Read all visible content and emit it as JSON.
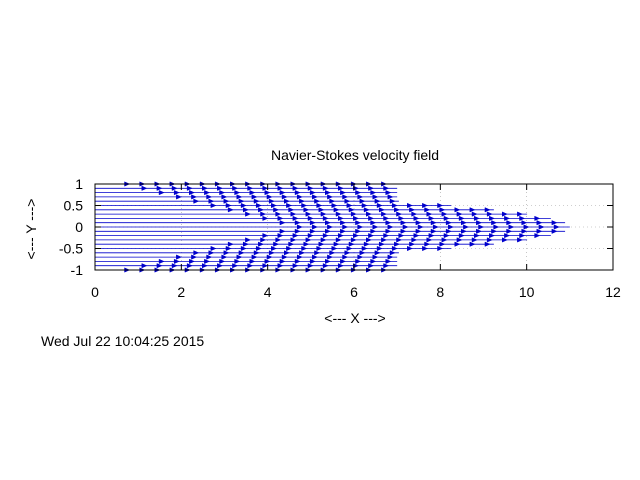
{
  "chart_data": {
    "type": "vector-field",
    "title": "Navier-Stokes velocity field",
    "xlabel": "<--- X --->",
    "ylabel": "<--- Y --->",
    "xlim": [
      0,
      12
    ],
    "ylim": [
      -1,
      1
    ],
    "xticks": [
      "0",
      "2",
      "4",
      "6",
      "8",
      "10",
      "12"
    ],
    "yticks": [
      "1",
      "0.5",
      "0",
      "-0.5",
      "-1"
    ],
    "grid": true,
    "legend": "none",
    "color": "#0000cc",
    "field": {
      "description": "parabolic flow profile u = 11*(1 - y^2), arrows on rows from y=-1 to y=1",
      "u_max": 11,
      "y_rows": [
        -1.0,
        -0.9,
        -0.8,
        -0.7,
        -0.6,
        -0.5,
        -0.4,
        -0.3,
        -0.2,
        -0.1,
        0.0,
        0.1,
        0.2,
        0.3,
        0.4,
        0.5,
        0.6,
        0.7,
        0.8,
        0.9,
        1.0
      ],
      "arrow_spacing_x": 0.35
    }
  },
  "timestamp": "Wed Jul 22 10:04:25 2015"
}
